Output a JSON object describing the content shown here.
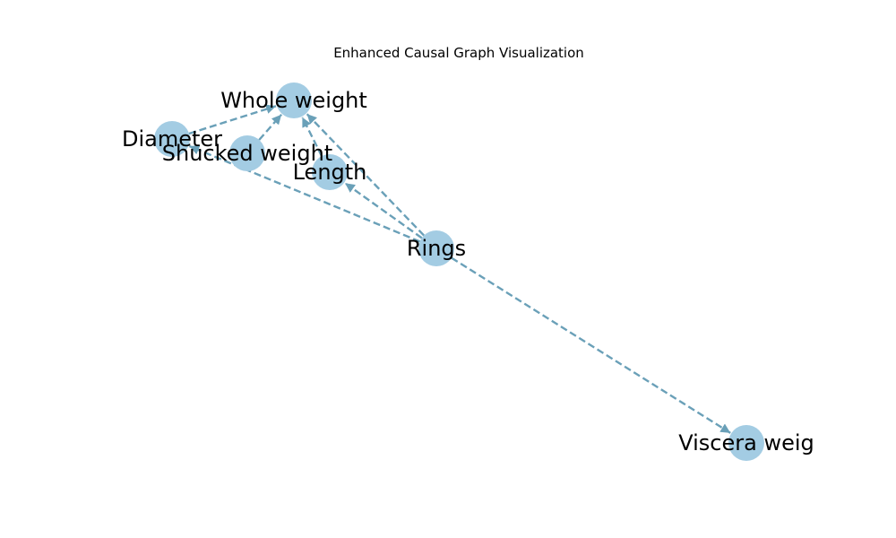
{
  "title": "Enhanced Causal Graph Visualization",
  "colors": {
    "node_fill": "#a3cce3",
    "edge": "#6aa0b8",
    "text": "#000000"
  },
  "nodes": [
    {
      "id": "whole_weight",
      "label": "Whole weight"
    },
    {
      "id": "diameter",
      "label": "Diameter"
    },
    {
      "id": "shucked_weight",
      "label": "Shucked weight"
    },
    {
      "id": "length",
      "label": "Length"
    },
    {
      "id": "rings",
      "label": "Rings"
    },
    {
      "id": "viscera_weight",
      "label": "Viscera weig"
    }
  ],
  "edges": [
    {
      "from": "diameter",
      "to": "whole_weight"
    },
    {
      "from": "shucked_weight",
      "to": "whole_weight"
    },
    {
      "from": "length",
      "to": "whole_weight"
    },
    {
      "from": "rings",
      "to": "whole_weight"
    },
    {
      "from": "rings",
      "to": "length"
    },
    {
      "from": "rings",
      "to": "diameter"
    },
    {
      "from": "rings",
      "to": "viscera_weight"
    }
  ]
}
